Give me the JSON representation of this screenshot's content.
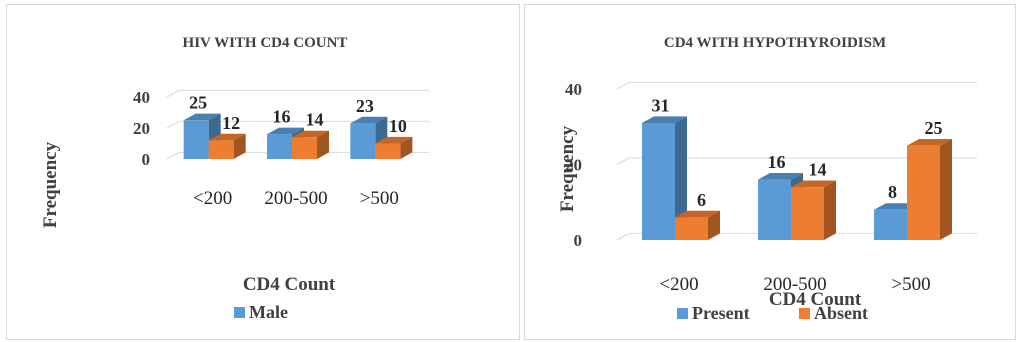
{
  "chart_data": [
    {
      "type": "bar",
      "title": "HIV WITH CD4 COUNT",
      "xlabel": "CD4 Count",
      "ylabel": "Frequency",
      "ylim": [
        0,
        40
      ],
      "yticks": [
        0,
        20,
        40
      ],
      "categories": [
        "<200",
        "200-500",
        ">500"
      ],
      "series": [
        {
          "name": "Male",
          "values": [
            25,
            16,
            23
          ],
          "color": "#5b9bd5"
        },
        {
          "values": [
            12,
            14,
            10
          ],
          "color": "#ed7d31"
        }
      ],
      "legend": [
        "Male"
      ],
      "legend_position": "bottom-left",
      "grid": true,
      "style": "3d-clustered-column"
    },
    {
      "type": "bar",
      "title": "CD4 WITH HYPOTHYROIDISM",
      "xlabel": "CD4 Count",
      "ylabel": "Frequency",
      "ylim": [
        0,
        40
      ],
      "yticks": [
        0,
        20,
        40
      ],
      "categories": [
        "<200",
        "200-500",
        ">500"
      ],
      "series": [
        {
          "name": "Present",
          "values": [
            31,
            16,
            8
          ],
          "color": "#5b9bd5"
        },
        {
          "name": "Absent",
          "values": [
            6,
            14,
            25
          ],
          "color": "#ed7d31"
        }
      ],
      "legend": [
        "Present",
        "Absent"
      ],
      "legend_position": "bottom",
      "grid": true,
      "style": "3d-clustered-column"
    }
  ]
}
